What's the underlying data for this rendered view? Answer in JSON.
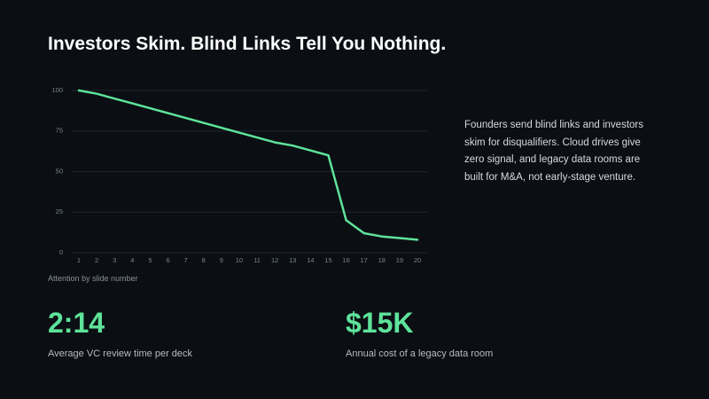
{
  "title": "Investors Skim. Blind Links Tell You Nothing.",
  "chart_data": {
    "type": "line",
    "x_label": "Attention by slide number",
    "x": [
      1,
      2,
      3,
      4,
      5,
      6,
      7,
      8,
      9,
      10,
      11,
      12,
      13,
      14,
      15,
      16,
      17,
      18,
      19,
      20
    ],
    "values": [
      100,
      98,
      95,
      92,
      89,
      86,
      83,
      80,
      77,
      74,
      71,
      68,
      66,
      63,
      60,
      20,
      12,
      10,
      9,
      8
    ],
    "color": "#5ee39a",
    "xlim": [
      1,
      20
    ],
    "xticks": [
      1,
      2,
      3,
      4,
      5,
      6,
      7,
      8,
      9,
      10,
      11,
      12,
      13,
      14,
      15,
      16,
      17,
      18,
      19,
      20
    ],
    "ylim": [
      0,
      100
    ],
    "yticks": [
      0,
      25,
      50,
      75,
      100
    ],
    "grid": true
  },
  "description": "Founders send blind links and investors skim for disqualifiers. Cloud drives give zero signal, and legacy data rooms are built for M&A, not early-stage venture.",
  "stats": [
    {
      "value": "2:14",
      "label": "Average VC review time per deck"
    },
    {
      "value": "$15K",
      "label": "Annual cost of a legacy data room"
    }
  ]
}
